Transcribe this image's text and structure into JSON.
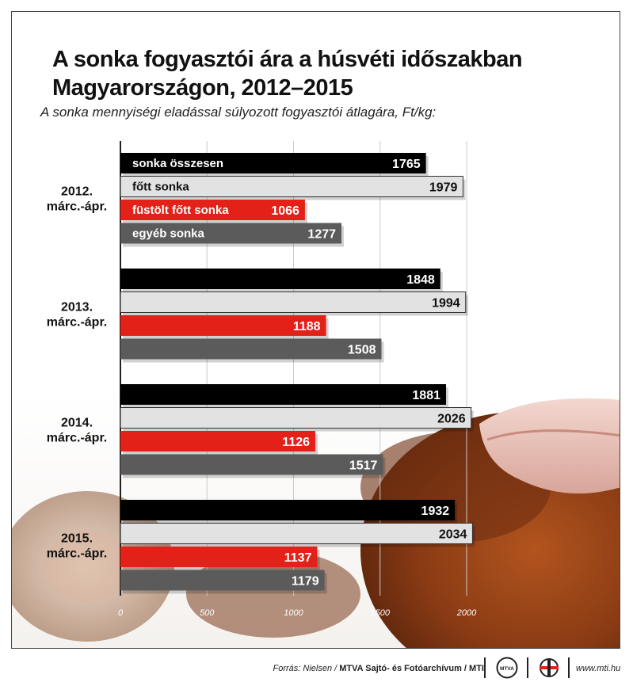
{
  "title_line1": "A sonka fogyasztói ára a húsvéti időszakban",
  "title_line2": "Magyarországon, 2012–2015",
  "subtitle": "A sonka mennyiségi eladással súlyozott fogyasztói átlagára, Ft/kg:",
  "footer": {
    "source_prefix": "Forrás: Nielsen / ",
    "source_bold": "MTVA Sajtó- és Fotóarchívum / MTI",
    "mtva_logo_text": "MTVA",
    "site": "www.mti.hu"
  },
  "colors": {
    "sonka_osszesen": "#000000",
    "fott_sonka": "#e2e2e2",
    "fustolt_fott_sonka": "#e32119",
    "egyeb_sonka": "#5b5b5b"
  },
  "chart_data": {
    "type": "bar",
    "orientation": "horizontal",
    "categories": [
      [
        "2012.",
        "márc.-ápr."
      ],
      [
        "2013.",
        "márc.-ápr."
      ],
      [
        "2014.",
        "márc.-ápr."
      ],
      [
        "2015.",
        "márc.-ápr."
      ]
    ],
    "series": [
      {
        "name": "sonka összesen",
        "values": [
          1765,
          1848,
          1881,
          1932
        ]
      },
      {
        "name": "főtt sonka",
        "values": [
          1979,
          1994,
          2026,
          2034
        ]
      },
      {
        "name": "füstölt főtt sonka",
        "values": [
          1066,
          1188,
          1126,
          1137
        ]
      },
      {
        "name": "egyéb sonka",
        "values": [
          1277,
          1508,
          1517,
          1179
        ]
      }
    ],
    "xlim": [
      0,
      2000
    ],
    "xticks": [
      0,
      500,
      1000,
      1500,
      2000
    ],
    "grid": true,
    "legend": "series names printed inside the first group's bars",
    "unit": "Ft/kg"
  }
}
